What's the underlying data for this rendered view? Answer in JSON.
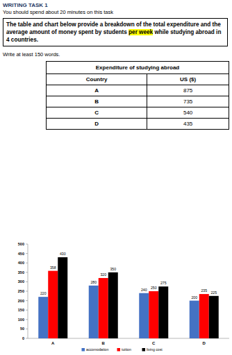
{
  "header": {
    "title": "WRITING TASK 1",
    "instruction": "You should spend about 20 minutes on this task"
  },
  "prompt": {
    "text_before": "The table and chart below provide a breakdown of the total expenditure and the average amount of money spent by students ",
    "highlight": "per week",
    "text_after": " while studying abroad in 4 countries."
  },
  "word_count": "Write at least 150 words.",
  "table": {
    "title": "Expenditure of studying abroad",
    "columns": [
      "Country",
      "US ($)"
    ],
    "rows": [
      [
        "A",
        875
      ],
      [
        "B",
        735
      ],
      [
        "C",
        540
      ],
      [
        "D",
        435
      ]
    ]
  },
  "chart_data": {
    "type": "bar",
    "categories": [
      "A",
      "B",
      "C",
      "D"
    ],
    "series": [
      {
        "name": "accomodation",
        "color": "#4472c4",
        "values": [
          220,
          280,
          240,
          200
        ]
      },
      {
        "name": "tuition",
        "color": "#ff0000",
        "values": [
          358,
          320,
          250,
          235
        ]
      },
      {
        "name": "living cost",
        "color": "#000000",
        "values": [
          430,
          350,
          275,
          225
        ]
      }
    ],
    "ylim": [
      0,
      500
    ],
    "yticks": [
      0,
      50,
      100,
      150,
      200,
      250,
      300,
      350,
      400,
      450,
      500
    ],
    "grid": false,
    "data_labels": true,
    "legend": "bottom"
  }
}
